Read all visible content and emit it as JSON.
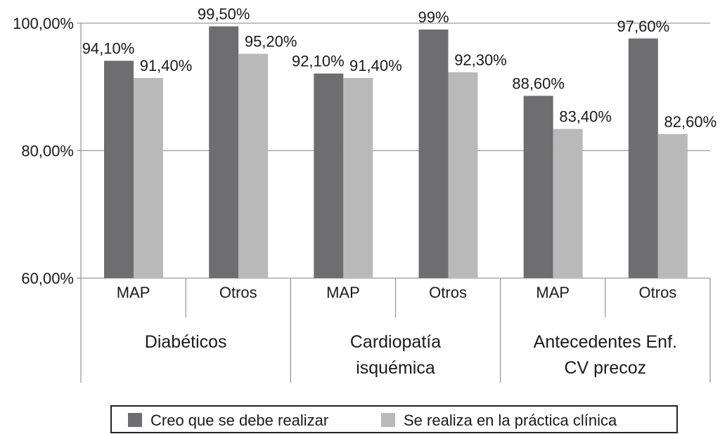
{
  "chart_data": {
    "type": "bar",
    "groups": [
      {
        "label": [
          "Diabéticos"
        ],
        "subcategories": [
          "MAP",
          "Otros"
        ]
      },
      {
        "label": [
          "Cardiopatía",
          "isquémica"
        ],
        "subcategories": [
          "MAP",
          "Otros"
        ]
      },
      {
        "label": [
          "Antecedentes Enf.",
          "CV precoz"
        ],
        "subcategories": [
          "MAP",
          "Otros"
        ]
      }
    ],
    "series": [
      {
        "name": "Creo que se debe realizar",
        "color": "#6e6e72",
        "values": [
          94.1,
          99.5,
          92.1,
          99.0,
          88.6,
          97.6
        ],
        "labels": [
          "94,10%",
          "99,50%",
          "92,10%",
          "99%",
          "88,60%",
          "97,60%"
        ]
      },
      {
        "name": "Se realiza en la práctica clínica",
        "color": "#b9b9b9",
        "values": [
          91.4,
          95.2,
          91.4,
          92.3,
          83.4,
          82.6
        ],
        "labels": [
          "91,40%",
          "95,20%",
          "91,40%",
          "92,30%",
          "83,40%",
          "82,60%"
        ]
      }
    ],
    "yticks": [
      "60,00%",
      "80,00%",
      "100,00%"
    ],
    "ytick_values": [
      60,
      80,
      100
    ],
    "ylim": [
      60,
      100
    ],
    "grid": true,
    "legend": "bottom"
  }
}
